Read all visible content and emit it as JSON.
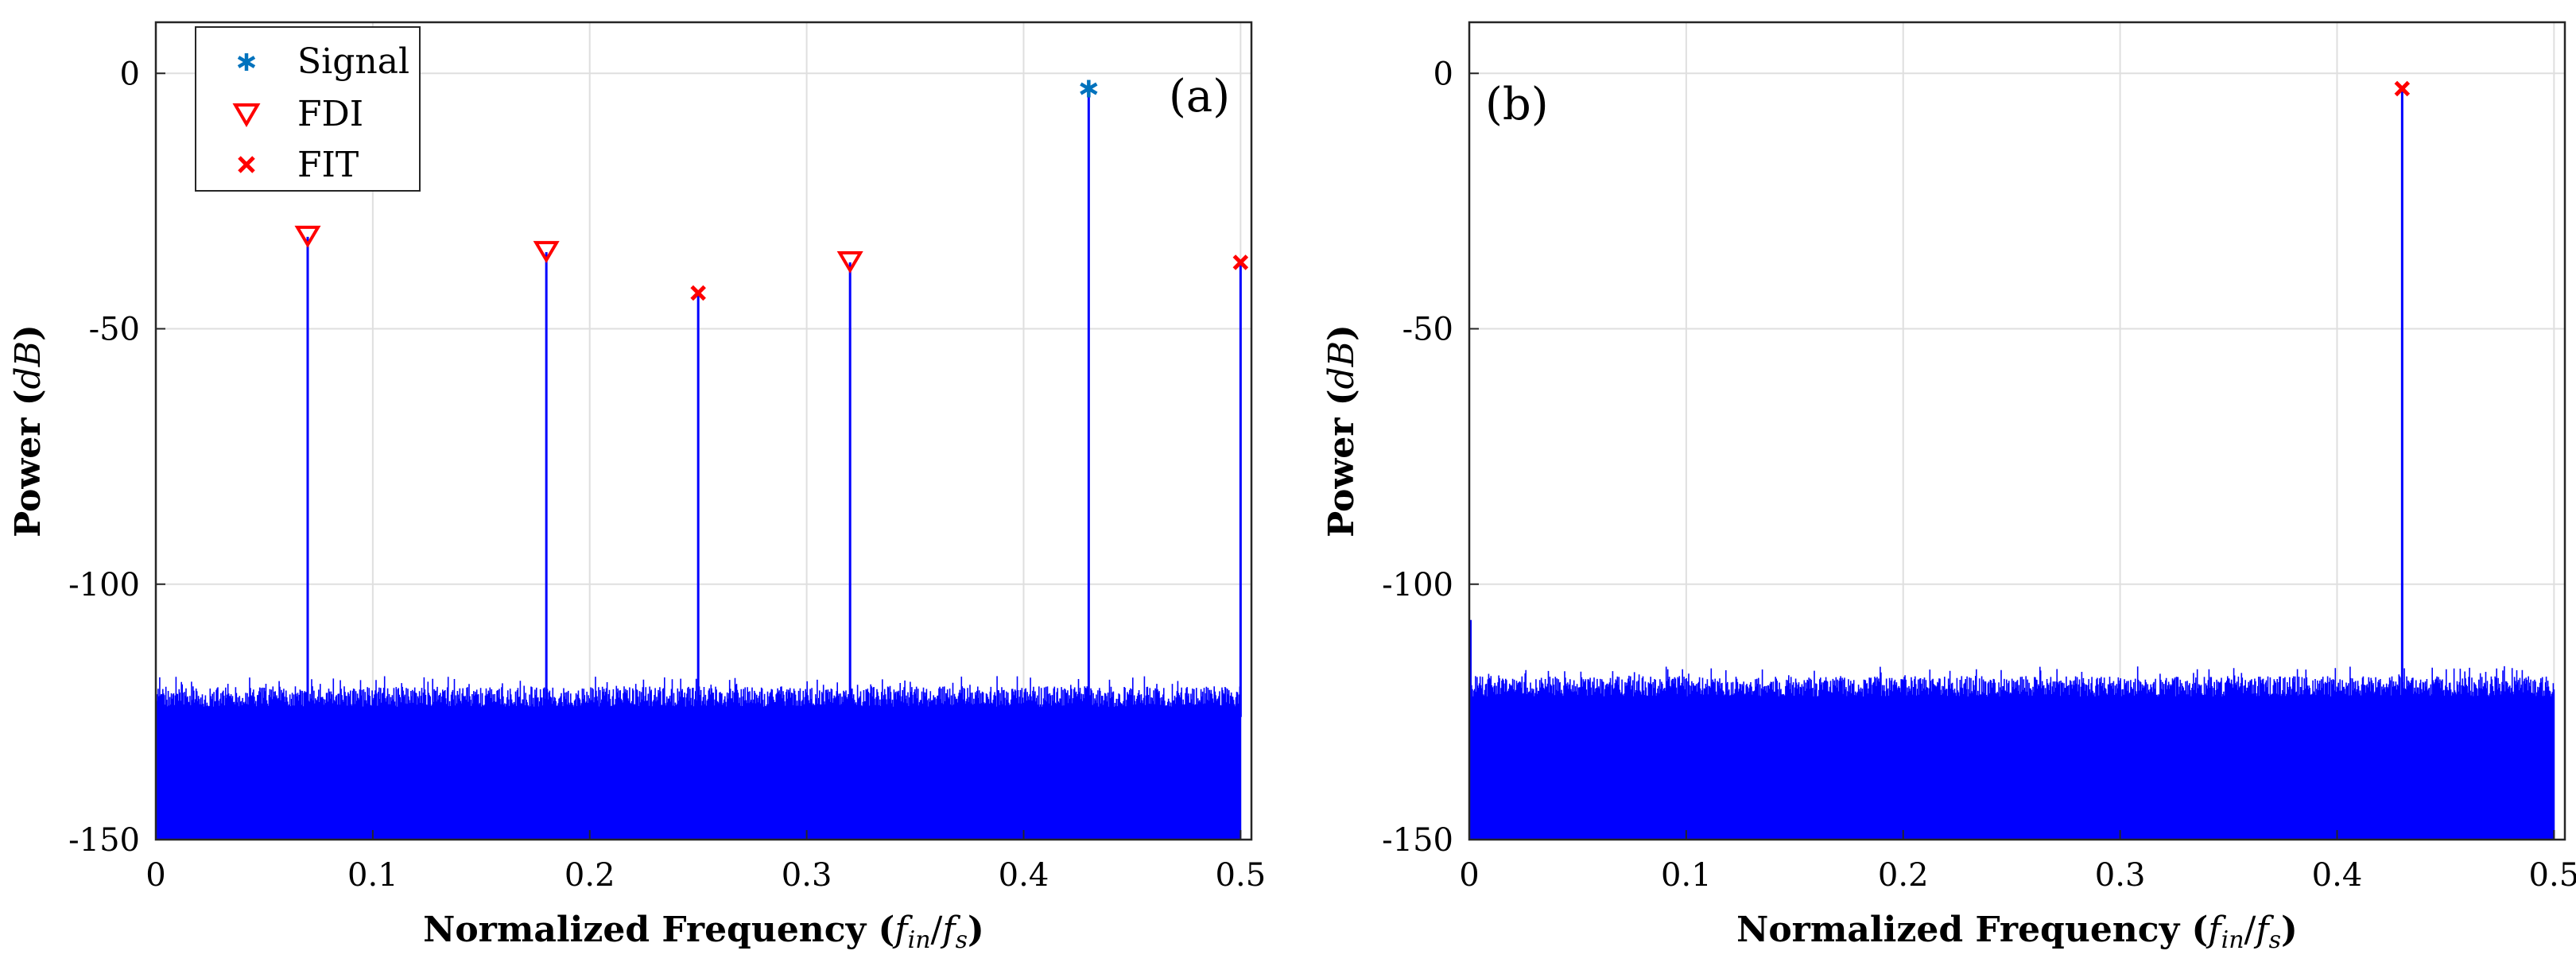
{
  "chart_data": [
    {
      "type": "line",
      "panel_label": "(a)",
      "xlabel": "Normalized Frequency (f_in/f_s)",
      "xlabel_parts": {
        "prefix": "Normalized Frequency (",
        "f1": "f",
        "sub1": "in",
        "slash": "/",
        "f2": "f",
        "sub2": "s",
        "suffix": ")"
      },
      "ylabel": "Power (dB)",
      "ylabel_parts": {
        "prefix": "Power (",
        "unit": "dB",
        "suffix": ")"
      },
      "xlim": [
        0,
        0.505
      ],
      "ylim": [
        -150,
        10
      ],
      "xticks": [
        0,
        0.1,
        0.2,
        0.3,
        0.4,
        0.5
      ],
      "xtick_labels": [
        "0",
        "0.1",
        "0.2",
        "0.3",
        "0.4",
        "0.5"
      ],
      "yticks": [
        0,
        -50,
        -100,
        -150
      ],
      "ytick_labels": [
        "0",
        "-50",
        "-100",
        "-150"
      ],
      "grid": true,
      "noise_floor": {
        "min": -150,
        "max": -118
      },
      "spurs": [
        {
          "x": 0.07,
          "y": -32,
          "marker": "FDI"
        },
        {
          "x": 0.18,
          "y": -35,
          "marker": "FDI"
        },
        {
          "x": 0.25,
          "y": -43,
          "marker": "FIT"
        },
        {
          "x": 0.32,
          "y": -37,
          "marker": "FDI"
        },
        {
          "x": 0.43,
          "y": -3,
          "marker": "Signal"
        },
        {
          "x": 0.5,
          "y": -37,
          "marker": "FIT"
        }
      ],
      "legend": {
        "position": "top-left",
        "entries": [
          {
            "name": "Signal",
            "symbol": "asterisk",
            "color": "#0072BD"
          },
          {
            "name": "FDI",
            "symbol": "triangle-down",
            "color": "#FF0000"
          },
          {
            "name": "FIT",
            "symbol": "cross",
            "color": "#FF0000"
          }
        ]
      }
    },
    {
      "type": "line",
      "panel_label": "(b)",
      "xlabel": "Normalized Frequency (f_in/f_s)",
      "xlabel_parts": {
        "prefix": "Normalized Frequency (",
        "f1": "f",
        "sub1": "in",
        "slash": "/",
        "f2": "f",
        "sub2": "s",
        "suffix": ")"
      },
      "ylabel": "Power (dB)",
      "ylabel_parts": {
        "prefix": "Power (",
        "unit": "dB",
        "suffix": ")"
      },
      "xlim": [
        0,
        0.505
      ],
      "ylim": [
        -150,
        10
      ],
      "xticks": [
        0,
        0.1,
        0.2,
        0.3,
        0.4,
        0.5
      ],
      "xtick_labels": [
        "0",
        "0.1",
        "0.2",
        "0.3",
        "0.4",
        "0.5"
      ],
      "yticks": [
        0,
        -50,
        -100,
        -150
      ],
      "ytick_labels": [
        "0",
        "-50",
        "-100",
        "-150"
      ],
      "grid": true,
      "noise_floor": {
        "min": -150,
        "max": -116
      },
      "spurs": [
        {
          "x": 0.43,
          "y": -3,
          "marker": "FIT"
        }
      ]
    }
  ],
  "colors": {
    "trace": "#0000FF",
    "signal_marker": "#0072BD",
    "spur_marker": "#FF0000",
    "grid": "#DFDFDF",
    "axes": "#262626"
  }
}
